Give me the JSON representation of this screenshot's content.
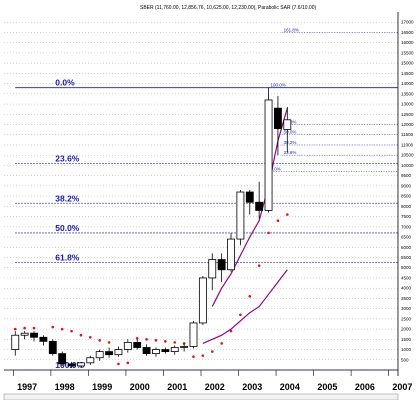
{
  "header": "SBER (11,760.00, 12,856.76, 10,625.00, 12,230.00), Parabolic SAR (7.6/10.00)",
  "chart_data": {
    "type": "candlestick",
    "title": "SBER (11,760.00, 12,856.76, 10,625.00, 12,230.00), Parabolic SAR (7.6/10.00)",
    "xlabel": "",
    "ylabel": "",
    "xlim": [
      1996.7,
      2007.2
    ],
    "ylim": [
      0,
      17500
    ],
    "x_ticks": [
      "1997",
      "1998",
      "1999",
      "2000",
      "2001",
      "2002",
      "2003",
      "2004",
      "2005",
      "2006",
      "2007"
    ],
    "y_ticks": [
      500,
      1000,
      1500,
      2000,
      2500,
      3000,
      3500,
      4000,
      4500,
      5000,
      5500,
      6000,
      6500,
      7000,
      7500,
      8000,
      8500,
      9000,
      9500,
      10000,
      10500,
      11000,
      11500,
      12000,
      12500,
      13000,
      13500,
      14000,
      14500,
      15000,
      15500,
      16000,
      16500,
      17000
    ],
    "y_tick_labels": [
      "500",
      "1000",
      "1500",
      "2000",
      "2500",
      "3000",
      "3500",
      "4000",
      "4500",
      "5000",
      "5500",
      "6000",
      "6500",
      "7000",
      "7500",
      "8000",
      "8500",
      "9000",
      "9500",
      "10000",
      "10500",
      "11000",
      "11500",
      "12000",
      "12500",
      "13000",
      "13500",
      "14000",
      "14500",
      "15000",
      "15500",
      "16000",
      "16500",
      "17000"
    ],
    "grid": "horizontal dotted",
    "candles": [
      {
        "t": 1997.0,
        "o": 1000,
        "h": 1900,
        "l": 700,
        "c": 1700
      },
      {
        "t": 1997.25,
        "o": 1700,
        "h": 1900,
        "l": 1500,
        "c": 1800
      },
      {
        "t": 1997.5,
        "o": 1800,
        "h": 1900,
        "l": 1400,
        "c": 1600
      },
      {
        "t": 1997.75,
        "o": 1600,
        "h": 1700,
        "l": 1200,
        "c": 1400
      },
      {
        "t": 1998.0,
        "o": 1400,
        "h": 1500,
        "l": 700,
        "c": 800
      },
      {
        "t": 1998.25,
        "o": 800,
        "h": 900,
        "l": 200,
        "c": 300
      },
      {
        "t": 1998.5,
        "o": 300,
        "h": 400,
        "l": 100,
        "c": 200
      },
      {
        "t": 1998.75,
        "o": 200,
        "h": 400,
        "l": 100,
        "c": 350
      },
      {
        "t": 1999.0,
        "o": 350,
        "h": 700,
        "l": 250,
        "c": 600
      },
      {
        "t": 1999.25,
        "o": 600,
        "h": 1000,
        "l": 450,
        "c": 900
      },
      {
        "t": 1999.5,
        "o": 900,
        "h": 1100,
        "l": 600,
        "c": 750
      },
      {
        "t": 1999.75,
        "o": 750,
        "h": 1150,
        "l": 650,
        "c": 1000
      },
      {
        "t": 2000.0,
        "o": 1000,
        "h": 1500,
        "l": 850,
        "c": 1350
      },
      {
        "t": 2000.25,
        "o": 1350,
        "h": 1500,
        "l": 1000,
        "c": 1100
      },
      {
        "t": 2000.5,
        "o": 1100,
        "h": 1250,
        "l": 700,
        "c": 800
      },
      {
        "t": 2000.75,
        "o": 800,
        "h": 1100,
        "l": 650,
        "c": 1000
      },
      {
        "t": 2001.0,
        "o": 1000,
        "h": 1100,
        "l": 800,
        "c": 900
      },
      {
        "t": 2001.25,
        "o": 900,
        "h": 1200,
        "l": 750,
        "c": 1100
      },
      {
        "t": 2001.5,
        "o": 1100,
        "h": 1300,
        "l": 900,
        "c": 1150
      },
      {
        "t": 2001.75,
        "o": 1150,
        "h": 2400,
        "l": 1050,
        "c": 2300
      },
      {
        "t": 2002.0,
        "o": 2300,
        "h": 4600,
        "l": 2200,
        "c": 4500
      },
      {
        "t": 2002.25,
        "o": 4500,
        "h": 5700,
        "l": 3900,
        "c": 5400
      },
      {
        "t": 2002.5,
        "o": 5400,
        "h": 5700,
        "l": 4300,
        "c": 4900
      },
      {
        "t": 2002.75,
        "o": 4900,
        "h": 6700,
        "l": 4800,
        "c": 6400
      },
      {
        "t": 2003.0,
        "o": 6400,
        "h": 8800,
        "l": 6100,
        "c": 8700
      },
      {
        "t": 2003.25,
        "o": 8700,
        "h": 8800,
        "l": 7600,
        "c": 8200
      },
      {
        "t": 2003.5,
        "o": 8200,
        "h": 9200,
        "l": 7400,
        "c": 7800
      },
      {
        "t": 2003.75,
        "o": 7800,
        "h": 13800,
        "l": 7700,
        "c": 13200
      },
      {
        "t": 2004.0,
        "o": 12800,
        "h": 13400,
        "l": 10500,
        "c": 11800
      },
      {
        "t": 2004.25,
        "o": 11760,
        "h": 12857,
        "l": 10625,
        "c": 12230
      }
    ],
    "parabolic_sar": [
      {
        "t": 1997.0,
        "v": 2000
      },
      {
        "t": 1997.25,
        "v": 2050
      },
      {
        "t": 1997.5,
        "v": 2050
      },
      {
        "t": 1998.0,
        "v": 2100
      },
      {
        "t": 1998.25,
        "v": 2000
      },
      {
        "t": 1998.5,
        "v": 1900
      },
      {
        "t": 1998.75,
        "v": 1700
      },
      {
        "t": 1999.0,
        "v": 1600
      },
      {
        "t": 1999.25,
        "v": 1450
      },
      {
        "t": 1999.5,
        "v": 1350
      },
      {
        "t": 1999.75,
        "v": 300
      },
      {
        "t": 2000.0,
        "v": 350
      },
      {
        "t": 2000.25,
        "v": 1550
      },
      {
        "t": 2000.5,
        "v": 1500
      },
      {
        "t": 2000.75,
        "v": 1450
      },
      {
        "t": 2001.0,
        "v": 1400
      },
      {
        "t": 2001.25,
        "v": 1350
      },
      {
        "t": 2001.5,
        "v": 1300
      },
      {
        "t": 2001.75,
        "v": 650
      },
      {
        "t": 2002.0,
        "v": 700
      },
      {
        "t": 2002.25,
        "v": 900
      },
      {
        "t": 2002.5,
        "v": 1300
      },
      {
        "t": 2002.75,
        "v": 1900
      },
      {
        "t": 2003.0,
        "v": 2700
      },
      {
        "t": 2003.25,
        "v": 3600
      },
      {
        "t": 2003.5,
        "v": 5100
      },
      {
        "t": 2003.75,
        "v": 6700
      },
      {
        "t": 2004.0,
        "v": 7300
      },
      {
        "t": 2004.25,
        "v": 7600
      }
    ],
    "ma_short": {
      "color": "#8a0b8a",
      "points": [
        {
          "t": 2002.25,
          "v": 3100
        },
        {
          "t": 2002.5,
          "v": 4000
        },
        {
          "t": 2002.75,
          "v": 4700
        },
        {
          "t": 2003.0,
          "v": 5600
        },
        {
          "t": 2003.25,
          "v": 6500
        },
        {
          "t": 2003.5,
          "v": 7300
        },
        {
          "t": 2003.75,
          "v": 9000
        },
        {
          "t": 2004.0,
          "v": 11200
        },
        {
          "t": 2004.25,
          "v": 12800
        }
      ]
    },
    "ma_long": {
      "color": "#8a0b8a",
      "points": [
        {
          "t": 2002.0,
          "v": 1300
        },
        {
          "t": 2002.25,
          "v": 1500
        },
        {
          "t": 2002.5,
          "v": 1700
        },
        {
          "t": 2002.75,
          "v": 2000
        },
        {
          "t": 2003.0,
          "v": 2400
        },
        {
          "t": 2003.25,
          "v": 2800
        },
        {
          "t": 2003.5,
          "v": 3100
        },
        {
          "t": 2003.75,
          "v": 3700
        },
        {
          "t": 2004.0,
          "v": 4300
        },
        {
          "t": 2004.25,
          "v": 4900
        }
      ]
    },
    "fib_levels": [
      {
        "label": "0.0%",
        "value": 13800,
        "x_from": 1997.0
      },
      {
        "label": "23.6%",
        "value": 10100,
        "x_from": 1997.0
      },
      {
        "label": "38.2%",
        "value": 8150,
        "x_from": 1997.0
      },
      {
        "label": "50.0%",
        "value": 6700,
        "x_from": 1997.0
      },
      {
        "label": "61.8%",
        "value": 5250,
        "x_from": 1997.0
      },
      {
        "label": "100.0%",
        "value": 0,
        "x_from": 1997.0
      }
    ],
    "fib_secondary": [
      {
        "label": "161.8%",
        "value": 16500,
        "x_from": 2004.1
      },
      {
        "label": "100.0%",
        "value": 13800,
        "x_from": 2003.75
      },
      {
        "label": "61.8%",
        "value": 12000,
        "x_from": 2004.1
      },
      {
        "label": "50.0%",
        "value": 11500,
        "x_from": 2004.1
      },
      {
        "label": "38.2%",
        "value": 11000,
        "x_from": 2004.1
      },
      {
        "label": "23.6%",
        "value": 10500,
        "x_from": 2004.1
      },
      {
        "label": "0.0%",
        "value": 9700,
        "x_from": 2003.75
      }
    ],
    "colors": {
      "fib_line": "#1a1aa6",
      "sar": "#e0141a",
      "candle": "#000000",
      "grid": "#999999"
    }
  }
}
